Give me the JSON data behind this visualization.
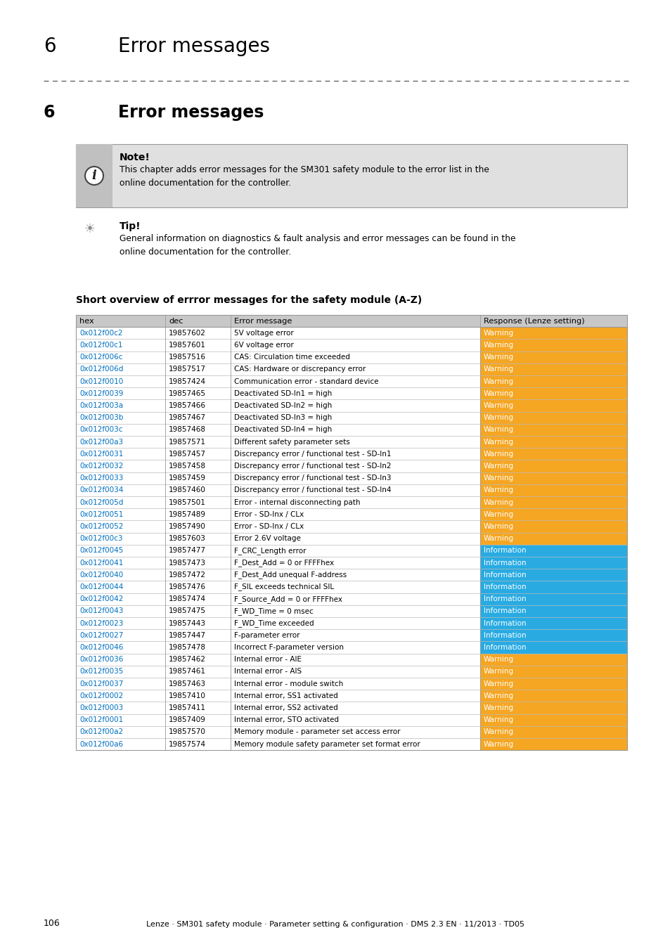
{
  "page_title_num": "6",
  "page_title_text": "Error messages",
  "section_num": "6",
  "section_title": "Error messages",
  "note_title": "Note!",
  "note_body": "This chapter adds error messages for the SM301 safety module to the error list in the\nonline documentation for the controller.",
  "tip_title": "Tip!",
  "tip_body": "General information on diagnostics & fault analysis and error messages can be found in the\nonline documentation for the controller.",
  "table_title": "Short overview of errror messages for the safety module (A-Z)",
  "col_headers": [
    "hex",
    "dec",
    "Error message",
    "Response (Lenze setting)"
  ],
  "rows": [
    [
      "0x012f00c2",
      "19857602",
      "5V voltage error",
      "Warning"
    ],
    [
      "0x012f00c1",
      "19857601",
      "6V voltage error",
      "Warning"
    ],
    [
      "0x012f006c",
      "19857516",
      "CAS: Circulation time exceeded",
      "Warning"
    ],
    [
      "0x012f006d",
      "19857517",
      "CAS: Hardware or discrepancy error",
      "Warning"
    ],
    [
      "0x012f0010",
      "19857424",
      "Communication error - standard device",
      "Warning"
    ],
    [
      "0x012f0039",
      "19857465",
      "Deactivated SD-In1 = high",
      "Warning"
    ],
    [
      "0x012f003a",
      "19857466",
      "Deactivated SD-In2 = high",
      "Warning"
    ],
    [
      "0x012f003b",
      "19857467",
      "Deactivated SD-In3 = high",
      "Warning"
    ],
    [
      "0x012f003c",
      "19857468",
      "Deactivated SD-In4 = high",
      "Warning"
    ],
    [
      "0x012f00a3",
      "19857571",
      "Different safety parameter sets",
      "Warning"
    ],
    [
      "0x012f0031",
      "19857457",
      "Discrepancy error / functional test - SD-In1",
      "Warning"
    ],
    [
      "0x012f0032",
      "19857458",
      "Discrepancy error / functional test - SD-In2",
      "Warning"
    ],
    [
      "0x012f0033",
      "19857459",
      "Discrepancy error / functional test - SD-In3",
      "Warning"
    ],
    [
      "0x012f0034",
      "19857460",
      "Discrepancy error / functional test - SD-In4",
      "Warning"
    ],
    [
      "0x012f005d",
      "19857501",
      "Error - internal disconnecting path",
      "Warning"
    ],
    [
      "0x012f0051",
      "19857489",
      "Error - SD-Inx / CLx",
      "Warning"
    ],
    [
      "0x012f0052",
      "19857490",
      "Error - SD-Inx / CLx",
      "Warning"
    ],
    [
      "0x012f00c3",
      "19857603",
      "Error 2.6V voltage",
      "Warning"
    ],
    [
      "0x012f0045",
      "19857477",
      "F_CRC_Length error",
      "Information"
    ],
    [
      "0x012f0041",
      "19857473",
      "F_Dest_Add = 0 or FFFFhex",
      "Information"
    ],
    [
      "0x012f0040",
      "19857472",
      "F_Dest_Add unequal F-address",
      "Information"
    ],
    [
      "0x012f0044",
      "19857476",
      "F_SIL exceeds technical SIL",
      "Information"
    ],
    [
      "0x012f0042",
      "19857474",
      "F_Source_Add = 0 or FFFFhex",
      "Information"
    ],
    [
      "0x012f0043",
      "19857475",
      "F_WD_Time = 0 msec",
      "Information"
    ],
    [
      "0x012f0023",
      "19857443",
      "F_WD_Time exceeded",
      "Information"
    ],
    [
      "0x012f0027",
      "19857447",
      "F-parameter error",
      "Information"
    ],
    [
      "0x012f0046",
      "19857478",
      "Incorrect F-parameter version",
      "Information"
    ],
    [
      "0x012f0036",
      "19857462",
      "Internal error - AIE",
      "Warning"
    ],
    [
      "0x012f0035",
      "19857461",
      "Internal error - AIS",
      "Warning"
    ],
    [
      "0x012f0037",
      "19857463",
      "Internal error - module switch",
      "Warning"
    ],
    [
      "0x012f0002",
      "19857410",
      "Internal error, SS1 activated",
      "Warning"
    ],
    [
      "0x012f0003",
      "19857411",
      "Internal error, SS2 activated",
      "Warning"
    ],
    [
      "0x012f0001",
      "19857409",
      "Internal error, STO activated",
      "Warning"
    ],
    [
      "0x012f00a2",
      "19857570",
      "Memory module - parameter set access error",
      "Warning"
    ],
    [
      "0x012f00a6",
      "19857574",
      "Memory module safety parameter set format error",
      "Warning"
    ]
  ],
  "warning_color": "#F5A623",
  "information_color": "#29ABE2",
  "header_bg": "#C8C8C8",
  "table_border_color": "#999999",
  "row_line_color": "#BBBBBB",
  "link_color": "#0070C0",
  "bg_color": "#FFFFFF",
  "text_color": "#000000",
  "note_bg": "#E0E0E0",
  "note_icon_bg": "#C0C0C0",
  "dash_color": "#666666",
  "page_num": "106",
  "footer_text": "Lenze · SM301 safety module · Parameter setting & configuration · DMS 2.3 EN · 11/2013 · TD05",
  "col_props": [
    0.162,
    0.118,
    0.453,
    0.267
  ]
}
